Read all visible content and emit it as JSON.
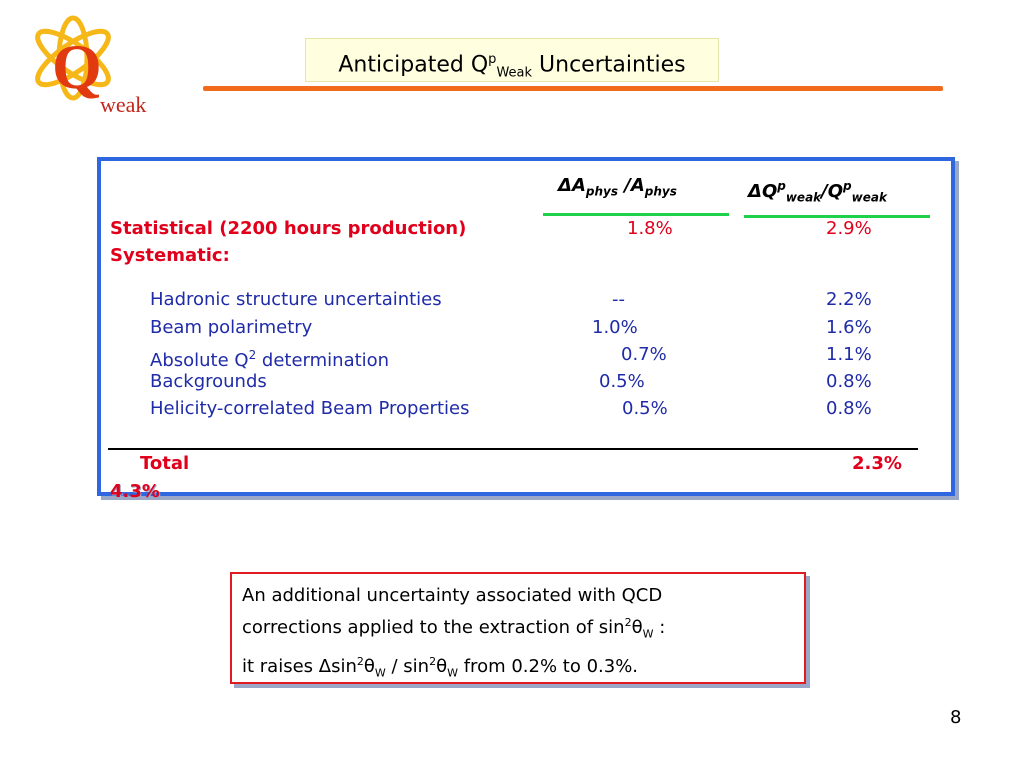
{
  "logo": {
    "letter": "Q",
    "text": "weak"
  },
  "title": {
    "prefix": "Anticipated Q",
    "sup": "p",
    "sub": "Weak",
    "suffix": " Uncertainties"
  },
  "table": {
    "headers": {
      "col1": {
        "delta": "Δ",
        "a1": "A",
        "sub1": "phys",
        "sep": " /",
        "a2": "A",
        "sub2": "phys"
      },
      "col2": {
        "delta": "Δ",
        "q1": "Q",
        "sup1": "p",
        "sub1": "weak",
        "sep": "/",
        "q2": "Q",
        "sup2": "p",
        "sub2": "weak"
      }
    },
    "statistical": {
      "label": "Statistical (2200 hours production)",
      "v1": "1.8%",
      "v2": "2.9%"
    },
    "systematic_label": "Systematic:",
    "systematic_rows": [
      {
        "label": "Hadronic structure uncertainties",
        "v1": "--",
        "v2": "2.2%"
      },
      {
        "label": "Beam polarimetry",
        "v1": "1.0%",
        "v2": "1.6%"
      },
      {
        "label_prefix": "Absolute Q",
        "label_sup": "2",
        "label_suffix": " determination",
        "v1": "0.7%",
        "v2": "1.1%"
      },
      {
        "label": "Backgrounds",
        "v1": "0.5%",
        "v2": "0.8%"
      },
      {
        "label": "Helicity-correlated Beam Properties",
        "v1": "0.5%",
        "v2": "0.8%"
      }
    ],
    "total": {
      "label": "Total",
      "v1": "2.3%",
      "v2": "4.3%"
    }
  },
  "note": {
    "line1": "An additional uncertainty associated with QCD",
    "line2_prefix": "corrections applied to the extraction of sin",
    "line2_sup": "2",
    "line2_theta": "θ",
    "line2_sub": "W",
    "line2_suffix": " :",
    "line3_prefix": "it raises ",
    "line3_delta": "Δ",
    "line3_sin": "sin",
    "line3_sup": "2",
    "line3_theta": "θ",
    "line3_sub": "W",
    "line3_mid": " / sin",
    "line3_sup2": "2",
    "line3_theta2": "θ",
    "line3_sub2": "W",
    "line3_suffix": " from 0.2% to 0.3%."
  },
  "page_number": "8"
}
